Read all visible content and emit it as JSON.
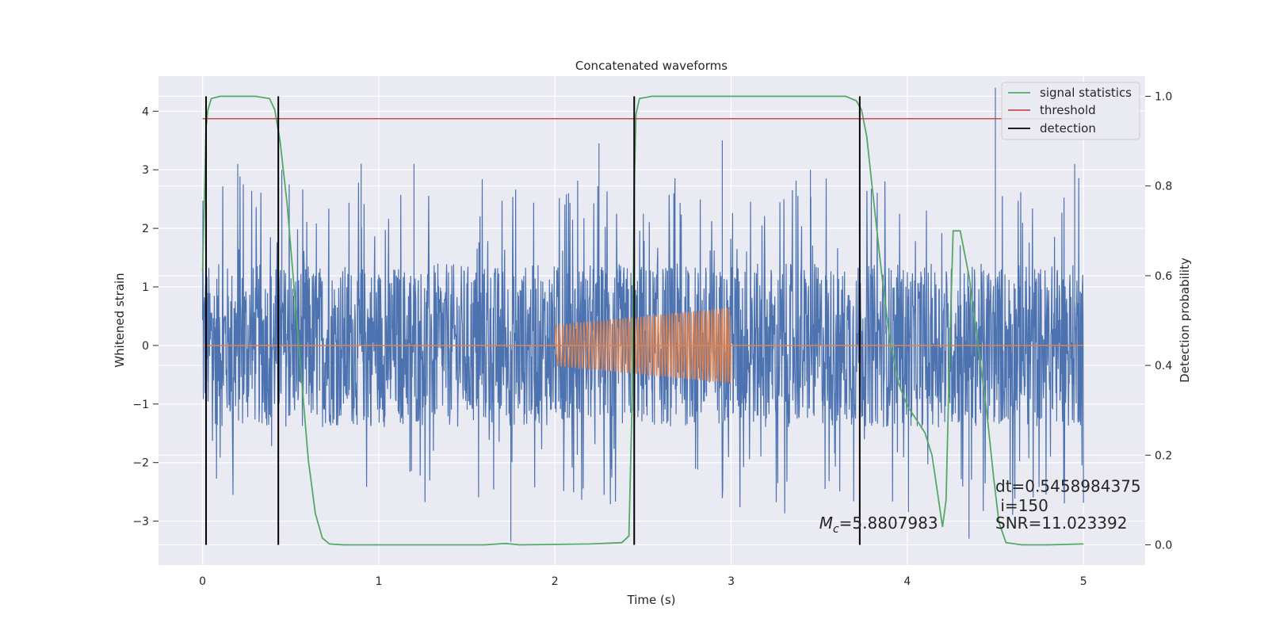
{
  "chart_data": {
    "type": "line",
    "title": "Concatenated waveforms",
    "xlabel": "Time (s)",
    "ylabel_left": "Whitened strain",
    "ylabel_right": "Detection probability",
    "xlim": [
      -0.25,
      5.35
    ],
    "ylim_left": [
      -3.75,
      4.6
    ],
    "ylim_right": [
      -0.045,
      1.045
    ],
    "x_ticks": [
      "0",
      "1",
      "2",
      "3",
      "4",
      "5"
    ],
    "x_tick_values": [
      0,
      1,
      2,
      3,
      4,
      5
    ],
    "y_left_ticks": [
      "−3",
      "−2",
      "−1",
      "0",
      "1",
      "2",
      "3",
      "4"
    ],
    "y_left_tick_values": [
      -3,
      -2,
      -1,
      0,
      1,
      2,
      3,
      4
    ],
    "y_right_ticks": [
      "0.0",
      "0.2",
      "0.4",
      "0.6",
      "0.8",
      "1.0"
    ],
    "y_right_tick_values": [
      0.0,
      0.2,
      0.4,
      0.6,
      0.8,
      1.0
    ],
    "grid": true,
    "legend_position": "top-right",
    "noise": {
      "x_range": [
        0,
        5
      ],
      "envelope": 1.4,
      "spikes": [
        {
          "x": 0.2,
          "y": 3.1
        },
        {
          "x": 0.45,
          "y": 3.0
        },
        {
          "x": 0.9,
          "y": 3.1
        },
        {
          "x": 1.2,
          "y": 3.1
        },
        {
          "x": 1.75,
          "y": -3.35
        },
        {
          "x": 2.25,
          "y": 3.45
        },
        {
          "x": 2.45,
          "y": -3.2
        },
        {
          "x": 2.95,
          "y": 3.5
        },
        {
          "x": 3.45,
          "y": 3.0
        },
        {
          "x": 4.5,
          "y": 4.4
        },
        {
          "x": 4.95,
          "y": 3.1
        },
        {
          "x": 4.35,
          "y": -3.3
        }
      ]
    },
    "chirp": {
      "x_start": 2.0,
      "x_end": 3.0,
      "amp_start": 0.35,
      "amp_end": 0.65
    },
    "series": [
      {
        "name": "signal statistics",
        "axis": "right",
        "color": "#55a868",
        "points": [
          [
            0.0,
            0.61
          ],
          [
            0.01,
            0.76
          ],
          [
            0.02,
            0.93
          ],
          [
            0.03,
            0.97
          ],
          [
            0.05,
            0.995
          ],
          [
            0.1,
            1.0
          ],
          [
            0.2,
            1.0
          ],
          [
            0.3,
            1.0
          ],
          [
            0.38,
            0.995
          ],
          [
            0.41,
            0.97
          ],
          [
            0.44,
            0.9
          ],
          [
            0.48,
            0.76
          ],
          [
            0.52,
            0.57
          ],
          [
            0.56,
            0.38
          ],
          [
            0.6,
            0.19
          ],
          [
            0.64,
            0.07
          ],
          [
            0.68,
            0.015
          ],
          [
            0.72,
            0.002
          ],
          [
            0.8,
            0.0
          ],
          [
            1.0,
            0.0
          ],
          [
            1.6,
            0.0
          ],
          [
            1.72,
            0.003
          ],
          [
            1.8,
            0.0
          ],
          [
            2.2,
            0.002
          ],
          [
            2.38,
            0.005
          ],
          [
            2.42,
            0.02
          ],
          [
            2.44,
            0.35
          ],
          [
            2.45,
            0.8
          ],
          [
            2.46,
            0.96
          ],
          [
            2.48,
            0.995
          ],
          [
            2.55,
            1.0
          ],
          [
            3.0,
            1.0
          ],
          [
            3.5,
            1.0
          ],
          [
            3.65,
            1.0
          ],
          [
            3.71,
            0.99
          ],
          [
            3.74,
            0.97
          ],
          [
            3.77,
            0.91
          ],
          [
            3.8,
            0.8
          ],
          [
            3.85,
            0.62
          ],
          [
            3.9,
            0.46
          ],
          [
            3.95,
            0.36
          ],
          [
            4.0,
            0.31
          ],
          [
            4.05,
            0.28
          ],
          [
            4.1,
            0.25
          ],
          [
            4.14,
            0.2
          ],
          [
            4.17,
            0.12
          ],
          [
            4.2,
            0.04
          ],
          [
            4.22,
            0.1
          ],
          [
            4.24,
            0.43
          ],
          [
            4.26,
            0.7
          ],
          [
            4.3,
            0.7
          ],
          [
            4.35,
            0.6
          ],
          [
            4.4,
            0.45
          ],
          [
            4.45,
            0.3
          ],
          [
            4.49,
            0.15
          ],
          [
            4.52,
            0.05
          ],
          [
            4.56,
            0.005
          ],
          [
            4.65,
            0.0
          ],
          [
            4.8,
            0.0
          ],
          [
            5.0,
            0.002
          ]
        ]
      },
      {
        "name": "threshold",
        "axis": "right",
        "color": "#c44e52",
        "x_range": [
          0,
          5
        ],
        "value": 0.95
      },
      {
        "name": "detection",
        "axis": "right",
        "color": "#000000",
        "x_values": [
          0.02,
          0.43,
          2.45,
          3.73
        ],
        "y_range": [
          0.0,
          1.0
        ]
      }
    ],
    "annotations": [
      {
        "text": "dt=0.5458984375",
        "x": 4.5,
        "y_left": -2.5
      },
      {
        "text": " i=150",
        "x": 4.5,
        "y_left": -2.83
      },
      {
        "text": "SNR=11.023392",
        "x": 4.5,
        "y_left": -3.13
      },
      {
        "text_main": "M",
        "text_sub": "c",
        "text_rest": "=5.8807983",
        "x": 3.5,
        "y_left": -3.13
      }
    ]
  }
}
